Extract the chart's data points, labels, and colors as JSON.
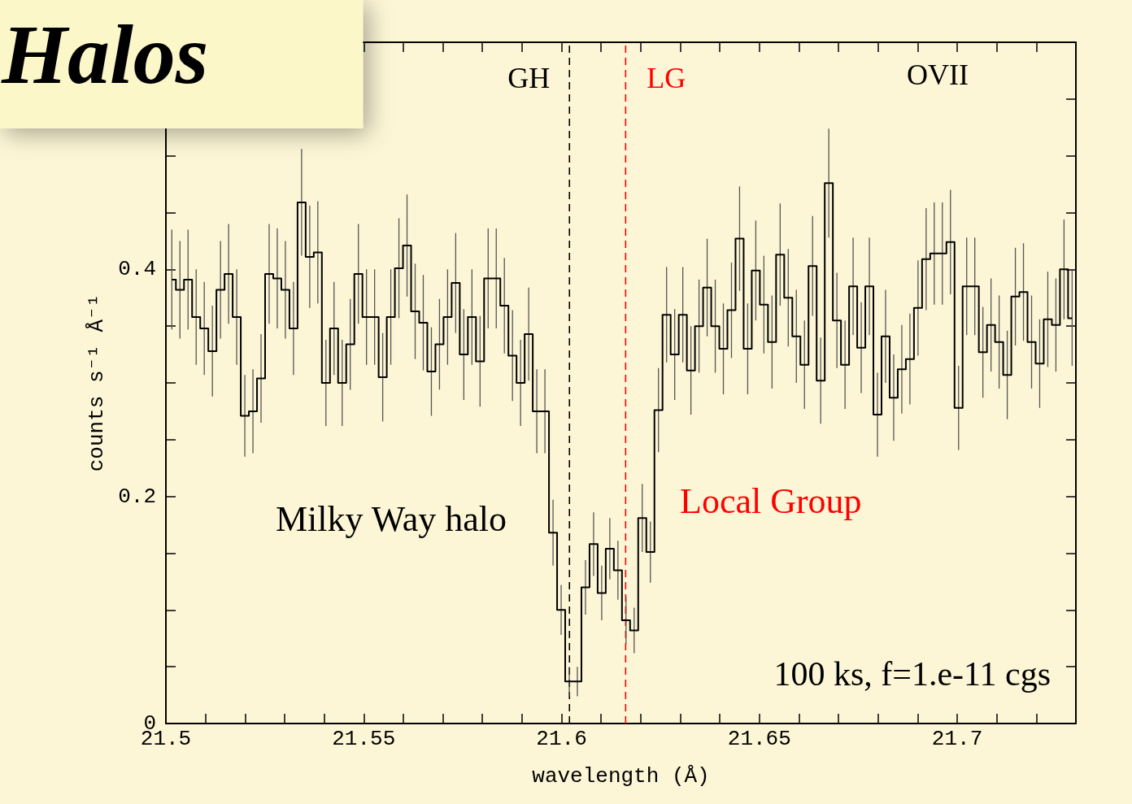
{
  "chart_data": {
    "type": "step",
    "title": "Halos",
    "xlabel": "wavelength (Å)",
    "ylabel": "counts s⁻¹ Å⁻¹",
    "x": [
      21.5015,
      21.50355,
      21.5056,
      21.50765,
      21.5097,
      21.51175,
      21.5138,
      21.51585,
      21.5179,
      21.51995,
      21.522,
      21.52405,
      21.5261,
      21.52815,
      21.5302,
      21.53225,
      21.5343,
      21.53635,
      21.5384,
      21.54045,
      21.5425,
      21.54455,
      21.5466,
      21.54865,
      21.5507,
      21.55275,
      21.5548,
      21.55685,
      21.5589,
      21.56095,
      21.563,
      21.56505,
      21.5671,
      21.56915,
      21.5712,
      21.57325,
      21.5753,
      21.57735,
      21.5794,
      21.58145,
      21.5835,
      21.58555,
      21.5876,
      21.58965,
      21.5917,
      21.59375,
      21.5958,
      21.59785,
      21.5999,
      21.60195,
      21.604,
      21.60605,
      21.6081,
      21.61015,
      21.6122,
      21.61425,
      21.6163,
      21.61835,
      21.6204,
      21.62245,
      21.6245,
      21.62655,
      21.6286,
      21.63065,
      21.6327,
      21.63475,
      21.6368,
      21.63885,
      21.6409,
      21.64295,
      21.645,
      21.64705,
      21.6491,
      21.65115,
      21.6532,
      21.65525,
      21.6573,
      21.65935,
      21.6614,
      21.66345,
      21.6655,
      21.66755,
      21.6696,
      21.67165,
      21.6737,
      21.67575,
      21.6778,
      21.67985,
      21.6819,
      21.68395,
      21.686,
      21.68805,
      21.6901,
      21.69215,
      21.6942,
      21.69625,
      21.6983,
      21.70035,
      21.7024,
      21.70445,
      21.7065,
      21.70855,
      21.7106,
      21.71265,
      21.7147,
      21.71675,
      21.7188,
      21.72085,
      21.7229,
      21.72495,
      21.727,
      21.72905
    ],
    "series": [
      {
        "color": "#000000",
        "values": [
          0.391,
          0.382,
          0.391,
          0.358,
          0.348,
          0.328,
          0.382,
          0.396,
          0.358,
          0.271,
          0.275,
          0.304,
          0.396,
          0.392,
          0.382,
          0.348,
          0.459,
          0.411,
          0.415,
          0.3,
          0.348,
          0.3,
          0.334,
          0.396,
          0.358,
          0.358,
          0.305,
          0.358,
          0.401,
          0.421,
          0.363,
          0.353,
          0.31,
          0.334,
          0.358,
          0.388,
          0.325,
          0.358,
          0.319,
          0.392,
          0.392,
          0.368,
          0.324,
          0.3,
          0.343,
          0.275,
          0.275,
          0.168,
          0.1,
          0.037,
          0.037,
          0.12,
          0.158,
          0.115,
          0.154,
          0.135,
          0.091,
          0.082,
          0.181,
          0.151,
          0.276,
          0.36,
          0.325,
          0.36,
          0.311,
          0.35,
          0.384,
          0.35,
          0.33,
          0.364,
          0.427,
          0.33,
          0.399,
          0.369,
          0.336,
          0.413,
          0.375,
          0.341,
          0.316,
          0.403,
          0.302,
          0.476,
          0.355,
          0.316,
          0.385,
          0.331,
          0.385,
          0.272,
          0.341,
          0.287,
          0.312,
          0.321,
          0.366,
          0.409,
          0.414,
          0.414,
          0.424,
          0.278,
          0.385,
          0.385,
          0.327,
          0.351,
          0.336,
          0.307,
          0.376,
          0.38,
          0.336,
          0.317,
          0.356,
          0.351,
          0.4,
          0.357
        ],
        "errors": [
          0.044,
          0.043,
          0.044,
          0.042,
          0.041,
          0.04,
          0.043,
          0.044,
          0.042,
          0.036,
          0.037,
          0.039,
          0.044,
          0.044,
          0.043,
          0.041,
          0.047,
          0.045,
          0.045,
          0.038,
          0.041,
          0.038,
          0.04,
          0.044,
          0.042,
          0.042,
          0.039,
          0.042,
          0.044,
          0.045,
          0.042,
          0.042,
          0.039,
          0.04,
          0.042,
          0.044,
          0.04,
          0.042,
          0.04,
          0.044,
          0.044,
          0.042,
          0.04,
          0.038,
          0.041,
          0.037,
          0.037,
          0.029,
          0.022,
          0.013,
          0.013,
          0.024,
          0.028,
          0.024,
          0.027,
          0.026,
          0.021,
          0.02,
          0.03,
          0.027,
          0.037,
          0.042,
          0.04,
          0.042,
          0.039,
          0.041,
          0.043,
          0.041,
          0.04,
          0.042,
          0.046,
          0.04,
          0.044,
          0.043,
          0.041,
          0.045,
          0.043,
          0.041,
          0.039,
          0.044,
          0.038,
          0.048,
          0.042,
          0.039,
          0.043,
          0.04,
          0.043,
          0.037,
          0.041,
          0.038,
          0.039,
          0.04,
          0.042,
          0.045,
          0.045,
          0.045,
          0.046,
          0.037,
          0.043,
          0.043,
          0.04,
          0.041,
          0.041,
          0.039,
          0.043,
          0.043,
          0.041,
          0.039,
          0.042,
          0.041,
          0.044,
          0.042
        ]
      }
    ],
    "xlim": [
      21.5,
      21.73
    ],
    "xticks": [
      21.5,
      {
        "value": 21.51,
        "label": null
      },
      {
        "value": 21.52,
        "label": null
      },
      {
        "value": 21.53,
        "label": null
      },
      {
        "value": 21.54,
        "label": null
      },
      21.55,
      {
        "value": 21.56,
        "label": null
      },
      {
        "value": 21.57,
        "label": null
      },
      {
        "value": 21.58,
        "label": null
      },
      {
        "value": 21.59,
        "label": null
      },
      21.6,
      {
        "value": 21.61,
        "label": null
      },
      {
        "value": 21.62,
        "label": null
      },
      {
        "value": 21.63,
        "label": null
      },
      {
        "value": 21.64,
        "label": null
      },
      21.65,
      {
        "value": 21.66,
        "label": null
      },
      {
        "value": 21.67,
        "label": null
      },
      {
        "value": 21.68,
        "label": null
      },
      {
        "value": 21.69,
        "label": null
      },
      21.7,
      {
        "value": 21.71,
        "label": null
      },
      {
        "value": 21.72,
        "label": null
      }
    ],
    "ylim": [
      0,
      0.6
    ],
    "yticks": [
      0,
      {
        "value": 0.05,
        "label": null
      },
      {
        "value": 0.1,
        "label": null
      },
      {
        "value": 0.15,
        "label": null
      },
      0.2,
      {
        "value": 0.25,
        "label": null
      },
      {
        "value": 0.3,
        "label": null
      },
      {
        "value": 0.35,
        "label": null
      },
      0.4,
      {
        "value": 0.45,
        "label": null
      },
      {
        "value": 0.5,
        "label": null
      },
      {
        "value": 0.55,
        "label": null
      }
    ],
    "ref_lines": [
      {
        "axis": "x",
        "value": 21.602,
        "label": "GH",
        "color": "#000000",
        "line_style": "dashed"
      },
      {
        "axis": "x",
        "value": 21.6162,
        "label": "LG",
        "color": "#ff0000",
        "line_style": "dashed"
      }
    ],
    "annotations": [
      "Milky Way halo",
      "Local Group",
      "OVII",
      "100 ks, f=1.e-11 cgs"
    ],
    "grid": false,
    "marker": "none"
  }
}
